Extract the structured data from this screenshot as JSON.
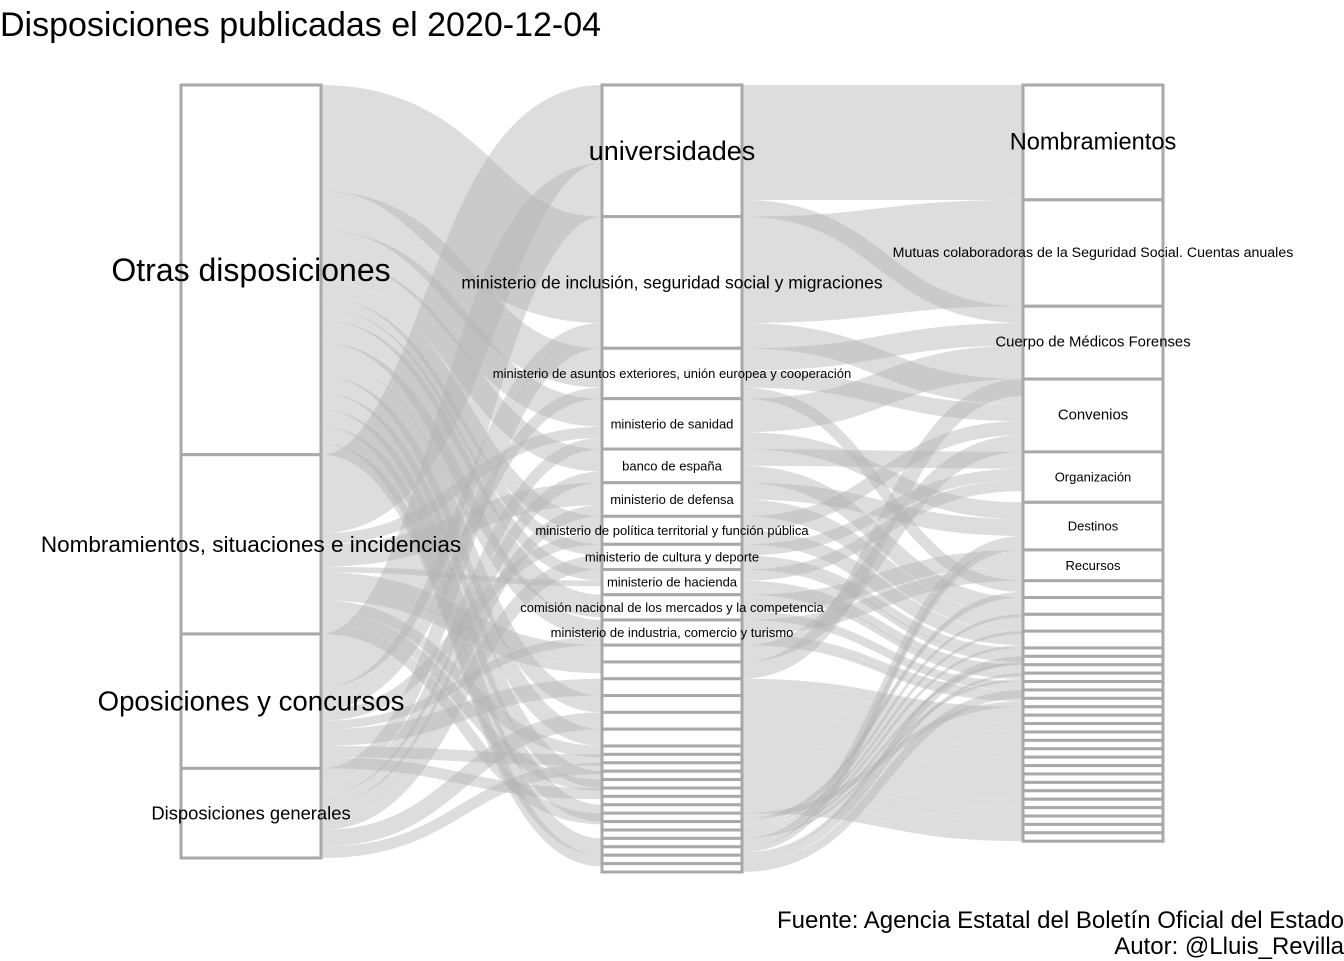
{
  "chart_data": {
    "type": "alluvial",
    "title": "Disposiciones publicadas el 2020-12-04",
    "caption_source": "Fuente: Agencia Estatal del Boletín Oficial del Estado",
    "caption_author": "Autor: @Lluis_Revilla",
    "axes": [
      {
        "strata": [
          {
            "label": "Otras disposiciones",
            "value": 66
          },
          {
            "label": "Nombramientos, situaciones e incidencias",
            "value": 32
          },
          {
            "label": "Oposiciones y concursos",
            "value": 24
          },
          {
            "label": "Disposiciones generales",
            "value": 16
          }
        ]
      },
      {
        "strata": [
          {
            "label": "universidades",
            "value": 23.5
          },
          {
            "label": "ministerio de inclusión, seguridad social y migraciones",
            "value": 23.5
          },
          {
            "label": "ministerio de asuntos exteriores, unión europea y cooperación",
            "value": 9
          },
          {
            "label": "ministerio de sanidad",
            "value": 9
          },
          {
            "label": "banco de españa",
            "value": 6
          },
          {
            "label": "ministerio de defensa",
            "value": 6
          },
          {
            "label": "ministerio de política territorial y función pública",
            "value": 5
          },
          {
            "label": "ministerio de cultura y deporte",
            "value": 4.5
          },
          {
            "label": "ministerio de hacienda",
            "value": 4.5
          },
          {
            "label": "comisión nacional de los mercados y la competencia",
            "value": 4.5
          },
          {
            "label": "ministerio de industria, comercio y turismo",
            "value": 4.5
          },
          {
            "label": "",
            "value": 3
          },
          {
            "label": "",
            "value": 3
          },
          {
            "label": "",
            "value": 3
          },
          {
            "label": "",
            "value": 3
          },
          {
            "label": "",
            "value": 3
          },
          {
            "label": "",
            "value": 3
          },
          {
            "label": "",
            "value": 1.5
          },
          {
            "label": "",
            "value": 1.5
          },
          {
            "label": "",
            "value": 1.5
          },
          {
            "label": "",
            "value": 1.5
          },
          {
            "label": "",
            "value": 1.5
          },
          {
            "label": "",
            "value": 1.5
          },
          {
            "label": "",
            "value": 1.5
          },
          {
            "label": "",
            "value": 1.5
          },
          {
            "label": "",
            "value": 1.5
          },
          {
            "label": "",
            "value": 1.5
          },
          {
            "label": "",
            "value": 1.5
          },
          {
            "label": "",
            "value": 1.5
          },
          {
            "label": "",
            "value": 1.5
          },
          {
            "label": "",
            "value": 1.5
          },
          {
            "label": "",
            "value": 1.5
          }
        ]
      },
      {
        "strata": [
          {
            "label": "Nombramientos",
            "value": 20.5
          },
          {
            "label": "Mutuas colaboradoras de la Seguridad Social. Cuentas anuales",
            "value": 19
          },
          {
            "label": "Cuerpo de Médicos Forenses",
            "value": 13
          },
          {
            "label": "Convenios",
            "value": 13
          },
          {
            "label": "Organización",
            "value": 9
          },
          {
            "label": "Destinos",
            "value": 8.5
          },
          {
            "label": "Recursos",
            "value": 5.5
          },
          {
            "label": "",
            "value": 3
          },
          {
            "label": "",
            "value": 3
          },
          {
            "label": "",
            "value": 3
          },
          {
            "label": "",
            "value": 3
          },
          {
            "label": "",
            "value": 1.5
          },
          {
            "label": "",
            "value": 1.5
          },
          {
            "label": "",
            "value": 1.5
          },
          {
            "label": "",
            "value": 1.5
          },
          {
            "label": "",
            "value": 1.5
          },
          {
            "label": "",
            "value": 1.5
          },
          {
            "label": "",
            "value": 1.5
          },
          {
            "label": "",
            "value": 1.5
          },
          {
            "label": "",
            "value": 1.5
          },
          {
            "label": "",
            "value": 1.5
          },
          {
            "label": "",
            "value": 1.5
          },
          {
            "label": "",
            "value": 1.5
          },
          {
            "label": "",
            "value": 1.5
          },
          {
            "label": "",
            "value": 1.5
          },
          {
            "label": "",
            "value": 1.5
          },
          {
            "label": "",
            "value": 1.5
          },
          {
            "label": "",
            "value": 1.5
          },
          {
            "label": "",
            "value": 1.5
          },
          {
            "label": "",
            "value": 1.5
          },
          {
            "label": "",
            "value": 1.5
          },
          {
            "label": "",
            "value": 1.5
          },
          {
            "label": "",
            "value": 1.5
          },
          {
            "label": "",
            "value": 1.5
          }
        ]
      }
    ],
    "flows": [
      {
        "axis": 0,
        "from": 0,
        "to": 1,
        "value": 19
      },
      {
        "axis": 0,
        "from": 0,
        "to": 2,
        "value": 7
      },
      {
        "axis": 0,
        "from": 0,
        "to": 3,
        "value": 5
      },
      {
        "axis": 0,
        "from": 0,
        "to": 4,
        "value": 4
      },
      {
        "axis": 0,
        "from": 0,
        "to": 6,
        "value": 3
      },
      {
        "axis": 0,
        "from": 0,
        "to": 7,
        "value": 2
      },
      {
        "axis": 0,
        "from": 0,
        "to": 8,
        "value": 2
      },
      {
        "axis": 0,
        "from": 0,
        "to": 9,
        "value": 4
      },
      {
        "axis": 0,
        "from": 0,
        "to": 10,
        "value": 3
      },
      {
        "axis": 0,
        "from": 0,
        "to": 14,
        "value": 3
      },
      {
        "axis": 0,
        "from": 0,
        "to": 16,
        "value": 3
      },
      {
        "axis": 0,
        "from": 0,
        "to": 20,
        "value": 3
      },
      {
        "axis": 0,
        "from": 0,
        "to": 24,
        "value": 3
      },
      {
        "axis": 0,
        "from": 0,
        "to": 28,
        "value": 3
      },
      {
        "axis": 0,
        "from": 0,
        "to": 30,
        "value": 2
      },
      {
        "axis": 0,
        "from": 1,
        "to": 0,
        "value": 14
      },
      {
        "axis": 0,
        "from": 1,
        "to": 3,
        "value": 2
      },
      {
        "axis": 0,
        "from": 1,
        "to": 5,
        "value": 4
      },
      {
        "axis": 0,
        "from": 1,
        "to": 8,
        "value": 1
      },
      {
        "axis": 0,
        "from": 1,
        "to": 11,
        "value": 3
      },
      {
        "axis": 0,
        "from": 1,
        "to": 12,
        "value": 2
      },
      {
        "axis": 0,
        "from": 1,
        "to": 17,
        "value": 2
      },
      {
        "axis": 0,
        "from": 1,
        "to": 21,
        "value": 2
      },
      {
        "axis": 0,
        "from": 1,
        "to": 25,
        "value": 2
      },
      {
        "axis": 0,
        "from": 2,
        "to": 0,
        "value": 9.5
      },
      {
        "axis": 0,
        "from": 2,
        "to": 1,
        "value": 2
      },
      {
        "axis": 0,
        "from": 2,
        "to": 2,
        "value": 2
      },
      {
        "axis": 0,
        "from": 2,
        "to": 6,
        "value": 2
      },
      {
        "axis": 0,
        "from": 2,
        "to": 10,
        "value": 1.5
      },
      {
        "axis": 0,
        "from": 2,
        "to": 13,
        "value": 3
      },
      {
        "axis": 0,
        "from": 2,
        "to": 18,
        "value": 2
      },
      {
        "axis": 0,
        "from": 2,
        "to": 22,
        "value": 2
      },
      {
        "axis": 0,
        "from": 3,
        "to": 1,
        "value": 2.5
      },
      {
        "axis": 0,
        "from": 3,
        "to": 3,
        "value": 2
      },
      {
        "axis": 0,
        "from": 3,
        "to": 4,
        "value": 2
      },
      {
        "axis": 0,
        "from": 3,
        "to": 5,
        "value": 2
      },
      {
        "axis": 0,
        "from": 3,
        "to": 7,
        "value": 2.5
      },
      {
        "axis": 0,
        "from": 3,
        "to": 15,
        "value": 3
      },
      {
        "axis": 0,
        "from": 3,
        "to": 19,
        "value": 2
      },
      {
        "axis": 1,
        "from": 0,
        "to": 0,
        "value": 20.5
      },
      {
        "axis": 1,
        "from": 0,
        "to": 2,
        "value": 3
      },
      {
        "axis": 1,
        "from": 1,
        "to": 1,
        "value": 19
      },
      {
        "axis": 1,
        "from": 1,
        "to": 3,
        "value": 4.5
      },
      {
        "axis": 1,
        "from": 2,
        "to": 2,
        "value": 4
      },
      {
        "axis": 1,
        "from": 2,
        "to": 3,
        "value": 3
      },
      {
        "axis": 1,
        "from": 2,
        "to": 7,
        "value": 2
      },
      {
        "axis": 1,
        "from": 3,
        "to": 2,
        "value": 6
      },
      {
        "axis": 1,
        "from": 3,
        "to": 5,
        "value": 3
      },
      {
        "axis": 1,
        "from": 4,
        "to": 4,
        "value": 3
      },
      {
        "axis": 1,
        "from": 4,
        "to": 8,
        "value": 3
      },
      {
        "axis": 1,
        "from": 5,
        "to": 5,
        "value": 3
      },
      {
        "axis": 1,
        "from": 5,
        "to": 9,
        "value": 3
      },
      {
        "axis": 1,
        "from": 6,
        "to": 3,
        "value": 2.5
      },
      {
        "axis": 1,
        "from": 6,
        "to": 10,
        "value": 2.5
      },
      {
        "axis": 1,
        "from": 7,
        "to": 4,
        "value": 2
      },
      {
        "axis": 1,
        "from": 7,
        "to": 11,
        "value": 1.5
      },
      {
        "axis": 1,
        "from": 7,
        "to": 12,
        "value": 1
      },
      {
        "axis": 1,
        "from": 8,
        "to": 4,
        "value": 2
      },
      {
        "axis": 1,
        "from": 8,
        "to": 13,
        "value": 1.5
      },
      {
        "axis": 1,
        "from": 8,
        "to": 14,
        "value": 1
      },
      {
        "axis": 1,
        "from": 9,
        "to": 6,
        "value": 3
      },
      {
        "axis": 1,
        "from": 9,
        "to": 15,
        "value": 1.5
      },
      {
        "axis": 1,
        "from": 10,
        "to": 6,
        "value": 2.5
      },
      {
        "axis": 1,
        "from": 10,
        "to": 16,
        "value": 1.5
      },
      {
        "axis": 1,
        "from": 10,
        "to": 17,
        "value": 0.5
      },
      {
        "axis": 1,
        "from": 11,
        "to": 3,
        "value": 3
      },
      {
        "axis": 1,
        "from": 12,
        "to": 2,
        "value": 3
      },
      {
        "axis": 1,
        "from": 13,
        "to": 18,
        "value": 1.5
      },
      {
        "axis": 1,
        "from": 13,
        "to": 19,
        "value": 1.5
      },
      {
        "axis": 1,
        "from": 14,
        "to": 20,
        "value": 1.5
      },
      {
        "axis": 1,
        "from": 14,
        "to": 21,
        "value": 1.5
      },
      {
        "axis": 1,
        "from": 15,
        "to": 22,
        "value": 1.5
      },
      {
        "axis": 1,
        "from": 15,
        "to": 23,
        "value": 1.5
      },
      {
        "axis": 1,
        "from": 16,
        "to": 24,
        "value": 1.5
      },
      {
        "axis": 1,
        "from": 16,
        "to": 25,
        "value": 1.5
      },
      {
        "axis": 1,
        "from": 17,
        "to": 26,
        "value": 1.5
      },
      {
        "axis": 1,
        "from": 18,
        "to": 27,
        "value": 1.5
      },
      {
        "axis": 1,
        "from": 19,
        "to": 28,
        "value": 1.5
      },
      {
        "axis": 1,
        "from": 20,
        "to": 29,
        "value": 1.5
      },
      {
        "axis": 1,
        "from": 21,
        "to": 30,
        "value": 1.5
      },
      {
        "axis": 1,
        "from": 22,
        "to": 31,
        "value": 1.5
      },
      {
        "axis": 1,
        "from": 23,
        "to": 32,
        "value": 1.5
      },
      {
        "axis": 1,
        "from": 24,
        "to": 33,
        "value": 1.5
      },
      {
        "axis": 1,
        "from": 25,
        "to": 17,
        "value": 1
      },
      {
        "axis": 1,
        "from": 25,
        "to": 7,
        "value": 0.5
      },
      {
        "axis": 1,
        "from": 26,
        "to": 7,
        "value": 0.5
      },
      {
        "axis": 1,
        "from": 26,
        "to": 8,
        "value": 0.5
      },
      {
        "axis": 1,
        "from": 26,
        "to": 9,
        "value": 0.5
      },
      {
        "axis": 1,
        "from": 27,
        "to": 10,
        "value": 0.5
      },
      {
        "axis": 1,
        "from": 27,
        "to": 12,
        "value": 0.5
      },
      {
        "axis": 1,
        "from": 27,
        "to": 14,
        "value": 0.5
      },
      {
        "axis": 1,
        "from": 28,
        "to": 5,
        "value": 1.5
      },
      {
        "axis": 1,
        "from": 29,
        "to": 5,
        "value": 1
      },
      {
        "axis": 1,
        "from": 29,
        "to": 11,
        "value": 0.5
      },
      {
        "axis": 1,
        "from": 30,
        "to": 11,
        "value": 1
      },
      {
        "axis": 1,
        "from": 30,
        "to": 13,
        "value": 0.5
      },
      {
        "axis": 1,
        "from": 31,
        "to": 15,
        "value": 1.5
      }
    ]
  }
}
